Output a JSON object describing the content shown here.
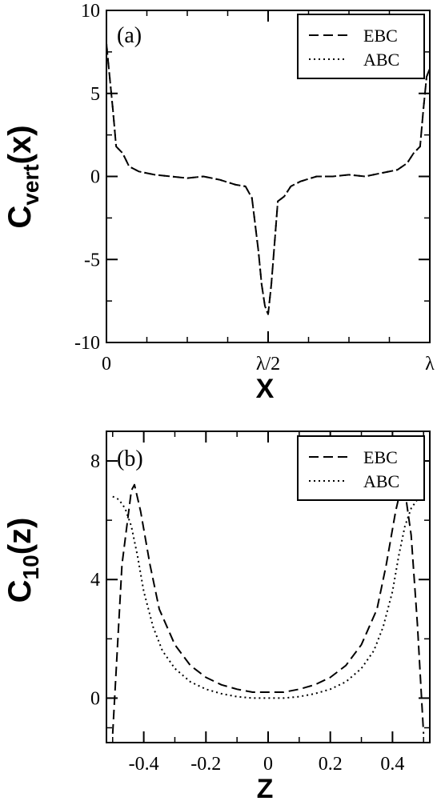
{
  "chart_data": [
    {
      "type": "line",
      "panel_label": "(a)",
      "xlabel": "X",
      "ylabel_main": "C",
      "ylabel_sub": "vert",
      "ylabel_arg": "(x)",
      "x_ticks": [
        {
          "value": 0,
          "label": "0"
        },
        {
          "value": 0.5,
          "label": "λ/2"
        },
        {
          "value": 1,
          "label": "λ"
        }
      ],
      "y_ticks": [
        {
          "value": -10,
          "label": "-10"
        },
        {
          "value": -5,
          "label": "-5"
        },
        {
          "value": 0,
          "label": "0"
        },
        {
          "value": 5,
          "label": "5"
        },
        {
          "value": 10,
          "label": "10"
        }
      ],
      "xlim": [
        0,
        1
      ],
      "ylim": [
        -10,
        10
      ],
      "legend_position": "top-right",
      "series": [
        {
          "name": "EBC",
          "style": "dashed",
          "x": [
            0,
            0.01,
            0.02,
            0.03,
            0.05,
            0.07,
            0.1,
            0.15,
            0.2,
            0.25,
            0.3,
            0.35,
            0.4,
            0.43,
            0.45,
            0.47,
            0.48,
            0.49,
            0.5,
            0.51,
            0.52,
            0.53,
            0.55,
            0.57,
            0.6,
            0.65,
            0.7,
            0.75,
            0.8,
            0.85,
            0.9,
            0.93,
            0.95,
            0.97,
            0.98,
            0.99,
            1.0
          ],
          "values": [
            8,
            6,
            4,
            1.8,
            1.4,
            0.6,
            0.3,
            0.1,
            0.0,
            -0.1,
            0.0,
            -0.2,
            -0.5,
            -0.6,
            -1.3,
            -4.5,
            -6.5,
            -7.8,
            -8.3,
            -6.5,
            -4.0,
            -1.5,
            -1.2,
            -0.6,
            -0.3,
            0.0,
            0.0,
            0.1,
            0.0,
            0.2,
            0.4,
            0.8,
            1.4,
            1.8,
            4.0,
            6.0,
            6.5
          ]
        },
        {
          "name": "ABC",
          "style": "dotted",
          "x": [
            0,
            0.01,
            0.02,
            0.03,
            0.05,
            0.07,
            0.1,
            0.15,
            0.2,
            0.25,
            0.3,
            0.35,
            0.4,
            0.43,
            0.45,
            0.47,
            0.48,
            0.49,
            0.5,
            0.51,
            0.52,
            0.53,
            0.55,
            0.57,
            0.6,
            0.65,
            0.7,
            0.75,
            0.8,
            0.85,
            0.9,
            0.93,
            0.95,
            0.97,
            0.98,
            0.99,
            1.0
          ],
          "values": [
            8,
            6,
            4,
            1.8,
            1.4,
            0.6,
            0.3,
            0.1,
            0.0,
            -0.1,
            0.0,
            -0.2,
            -0.5,
            -0.6,
            -1.3,
            -4.5,
            -6.5,
            -7.8,
            -8.3,
            -6.5,
            -4.0,
            -1.5,
            -1.2,
            -0.6,
            -0.3,
            0.0,
            0.0,
            0.1,
            0.0,
            0.2,
            0.4,
            0.8,
            1.4,
            1.8,
            4.0,
            6.0,
            6.5
          ]
        }
      ]
    },
    {
      "type": "line",
      "panel_label": "(b)",
      "xlabel": "Z",
      "ylabel_main": "C",
      "ylabel_sub": "10",
      "ylabel_arg": "(z)",
      "x_ticks": [
        {
          "value": -0.4,
          "label": "-0.4"
        },
        {
          "value": -0.2,
          "label": "-0.2"
        },
        {
          "value": 0,
          "label": "0"
        },
        {
          "value": 0.2,
          "label": "0.2"
        },
        {
          "value": 0.4,
          "label": "0.4"
        }
      ],
      "y_ticks": [
        {
          "value": 0,
          "label": "0"
        },
        {
          "value": 4,
          "label": "4"
        },
        {
          "value": 8,
          "label": "8"
        }
      ],
      "xlim": [
        -0.52,
        0.52
      ],
      "ylim": [
        -1.5,
        9
      ],
      "legend_position": "top-right",
      "series": [
        {
          "name": "EBC",
          "style": "dashed",
          "x": [
            -0.5,
            -0.47,
            -0.44,
            -0.43,
            -0.41,
            -0.38,
            -0.35,
            -0.3,
            -0.25,
            -0.2,
            -0.15,
            -0.1,
            -0.05,
            0,
            0.05,
            0.1,
            0.15,
            0.2,
            0.25,
            0.3,
            0.35,
            0.38,
            0.41,
            0.43,
            0.44,
            0.46,
            0.48,
            0.5
          ],
          "values": [
            -1.2,
            4.5,
            7.0,
            7.2,
            6.3,
            4.5,
            3.0,
            1.8,
            1.1,
            0.7,
            0.45,
            0.3,
            0.2,
            0.2,
            0.2,
            0.3,
            0.45,
            0.7,
            1.1,
            1.8,
            3.0,
            4.5,
            6.3,
            7.2,
            7.0,
            5.5,
            2.5,
            -1.2
          ]
        },
        {
          "name": "ABC",
          "style": "dotted",
          "x": [
            -0.5,
            -0.48,
            -0.46,
            -0.44,
            -0.42,
            -0.4,
            -0.37,
            -0.34,
            -0.3,
            -0.25,
            -0.2,
            -0.15,
            -0.1,
            -0.05,
            0,
            0.05,
            0.1,
            0.15,
            0.2,
            0.25,
            0.3,
            0.34,
            0.37,
            0.4,
            0.42,
            0.44,
            0.46,
            0.48,
            0.5
          ],
          "values": [
            6.8,
            6.7,
            6.4,
            5.8,
            4.8,
            3.6,
            2.4,
            1.6,
            1.0,
            0.55,
            0.3,
            0.15,
            0.05,
            0.0,
            0.0,
            0.0,
            0.05,
            0.15,
            0.3,
            0.55,
            1.0,
            1.6,
            2.4,
            3.6,
            4.8,
            5.8,
            6.4,
            6.7,
            6.8
          ]
        }
      ]
    }
  ]
}
